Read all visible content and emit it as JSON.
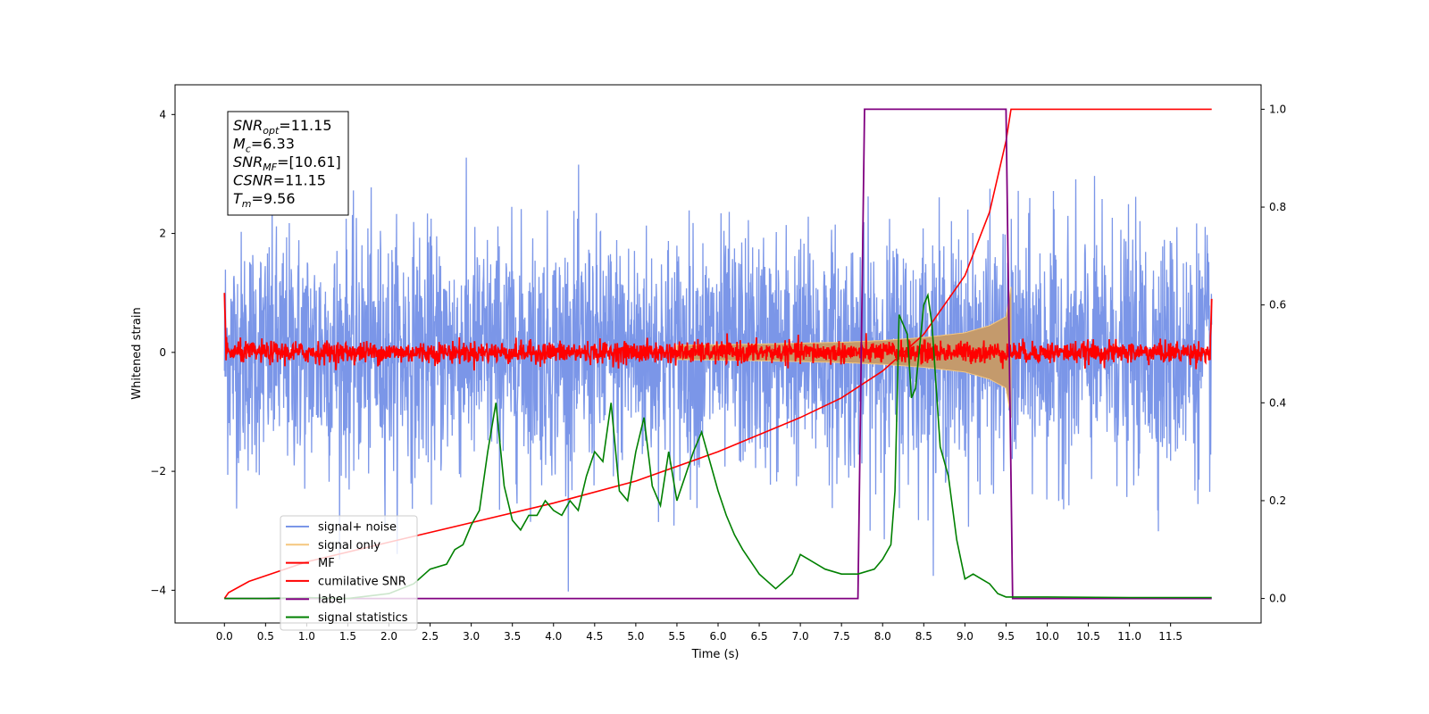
{
  "chart_data": {
    "type": "line",
    "xlabel": "Time (s)",
    "ylabel": "Whitened strain",
    "xlim": [
      -0.6,
      12.6
    ],
    "ylim": [
      -4.55,
      4.5
    ],
    "y2lim": [
      -0.05,
      1.05
    ],
    "x_ticks": [
      "0.0",
      "0.5",
      "1.0",
      "1.5",
      "2.0",
      "2.5",
      "3.0",
      "3.5",
      "4.0",
      "4.5",
      "5.0",
      "5.5",
      "6.0",
      "6.5",
      "7.0",
      "7.5",
      "8.0",
      "8.5",
      "9.0",
      "9.5",
      "10.0",
      "10.5",
      "11.0",
      "11.5"
    ],
    "y_ticks": [
      "4",
      "2",
      "0",
      "−2",
      "−4"
    ],
    "y2_ticks": [
      "1.0",
      "0.8",
      "0.6",
      "0.4",
      "0.2",
      "0.0"
    ],
    "legend_position": "lower-left",
    "annotation": {
      "lines": [
        {
          "base": "SNR",
          "sub": "opt",
          "rest": "=11.15"
        },
        {
          "base": "M",
          "sub": "c",
          "rest": "=6.33"
        },
        {
          "base": "SNR",
          "sub": "MF",
          "rest": "=[10.61]"
        },
        {
          "base": "CSNR",
          "sub": "",
          "rest": "=11.15"
        },
        {
          "base": "T",
          "sub": "m",
          "rest": "=9.56"
        }
      ]
    },
    "series": [
      {
        "name": "signal+ noise",
        "color": "#7b96e8",
        "axis": "left",
        "noise_std": 1.0,
        "x_range": [
          0,
          12
        ]
      },
      {
        "name": "signal only",
        "color": "#f5c77e",
        "fill_color": "#c49a6c",
        "axis": "left",
        "envelope": [
          [
            5.5,
            0.12
          ],
          [
            6.5,
            0.14
          ],
          [
            7.5,
            0.17
          ],
          [
            8.0,
            0.2
          ],
          [
            8.5,
            0.25
          ],
          [
            9.0,
            0.33
          ],
          [
            9.3,
            0.45
          ],
          [
            9.5,
            0.6
          ],
          [
            9.56,
            1.1
          ]
        ]
      },
      {
        "name": "MF",
        "color": "#ff0000",
        "axis": "left",
        "noise_std": 0.09,
        "x_range": [
          0,
          12
        ],
        "edge_values": [
          1.0,
          0.9
        ]
      },
      {
        "name": "cumilative SNR",
        "color": "#ff0000",
        "axis": "right",
        "x": [
          0,
          0.05,
          0.3,
          1,
          2,
          3,
          4,
          5,
          6,
          7,
          7.5,
          8,
          8.5,
          9,
          9.3,
          9.5,
          9.56,
          12
        ],
        "y": [
          0,
          0.012,
          0.035,
          0.075,
          0.115,
          0.155,
          0.195,
          0.24,
          0.3,
          0.37,
          0.41,
          0.465,
          0.54,
          0.66,
          0.79,
          0.935,
          1.0,
          1.0
        ]
      },
      {
        "name": "label",
        "color": "#800080",
        "axis": "right",
        "x": [
          0,
          7.7,
          7.78,
          9.5,
          9.58,
          12
        ],
        "y": [
          0,
          0,
          1.0,
          1.0,
          0,
          0
        ]
      },
      {
        "name": "signal statistics",
        "color": "#008000",
        "axis": "right",
        "x": [
          0,
          0.5,
          1.0,
          1.5,
          2.0,
          2.3,
          2.5,
          2.7,
          2.8,
          2.9,
          3.0,
          3.1,
          3.2,
          3.3,
          3.4,
          3.5,
          3.6,
          3.7,
          3.8,
          3.9,
          4.0,
          4.1,
          4.2,
          4.3,
          4.4,
          4.5,
          4.6,
          4.7,
          4.8,
          4.9,
          5.0,
          5.1,
          5.2,
          5.3,
          5.4,
          5.5,
          5.6,
          5.7,
          5.8,
          5.9,
          6.0,
          6.1,
          6.2,
          6.3,
          6.5,
          6.7,
          6.9,
          7.0,
          7.1,
          7.2,
          7.3,
          7.5,
          7.7,
          7.9,
          8.0,
          8.1,
          8.15,
          8.2,
          8.3,
          8.35,
          8.4,
          8.5,
          8.55,
          8.6,
          8.7,
          8.8,
          8.9,
          9.0,
          9.1,
          9.2,
          9.3,
          9.4,
          9.5,
          9.6,
          10,
          11,
          12
        ],
        "y": [
          0,
          0,
          0.002,
          0,
          0.01,
          0.03,
          0.06,
          0.07,
          0.1,
          0.11,
          0.15,
          0.18,
          0.3,
          0.4,
          0.23,
          0.16,
          0.14,
          0.17,
          0.17,
          0.2,
          0.18,
          0.17,
          0.2,
          0.18,
          0.25,
          0.3,
          0.28,
          0.4,
          0.22,
          0.2,
          0.3,
          0.37,
          0.23,
          0.19,
          0.3,
          0.2,
          0.25,
          0.3,
          0.34,
          0.28,
          0.22,
          0.17,
          0.13,
          0.1,
          0.05,
          0.02,
          0.05,
          0.09,
          0.08,
          0.07,
          0.06,
          0.05,
          0.05,
          0.06,
          0.08,
          0.11,
          0.22,
          0.58,
          0.54,
          0.41,
          0.43,
          0.6,
          0.62,
          0.56,
          0.31,
          0.25,
          0.12,
          0.04,
          0.05,
          0.04,
          0.03,
          0.01,
          0.003,
          0.003,
          0.003,
          0.002,
          0.002
        ]
      }
    ]
  }
}
